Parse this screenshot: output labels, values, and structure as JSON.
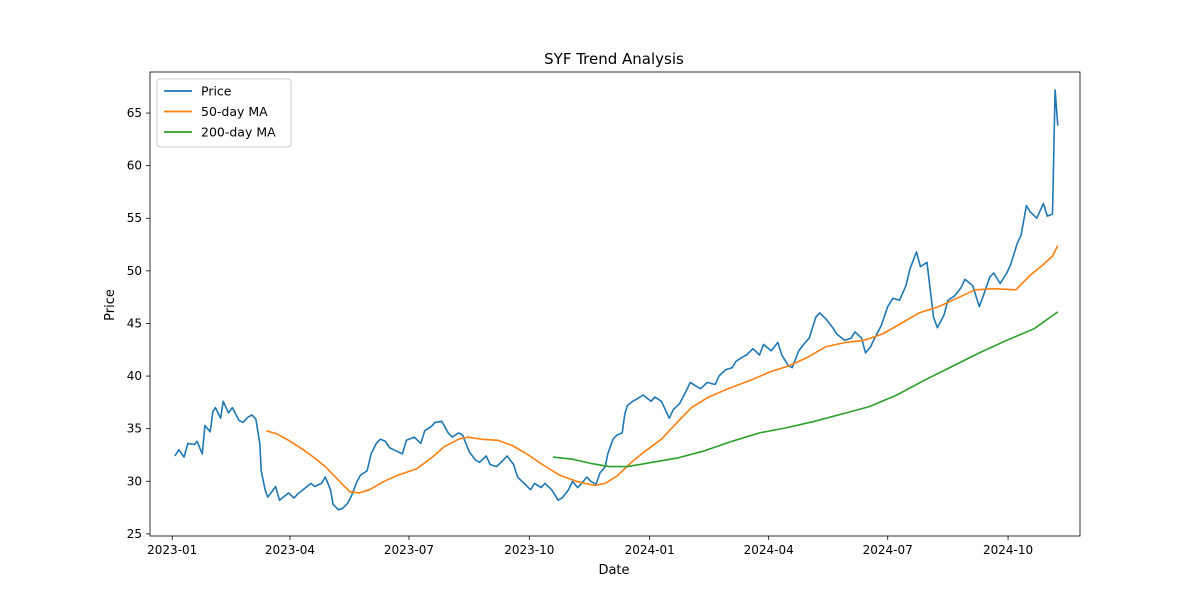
{
  "chart_data": {
    "type": "line",
    "title": "SYF Trend Analysis",
    "xlabel": "Date",
    "ylabel": "Price",
    "xlim": [
      "2022-12-15",
      "2024-11-25"
    ],
    "ylim": [
      24.8,
      68.9
    ],
    "grid": false,
    "legend_position": "top-left",
    "x_ticks": [
      "2023-01",
      "2023-04",
      "2023-07",
      "2023-10",
      "2024-01",
      "2024-04",
      "2024-07",
      "2024-10"
    ],
    "y_ticks": [
      25,
      30,
      35,
      40,
      45,
      50,
      55,
      60,
      65
    ],
    "series": [
      {
        "name": "Price",
        "color": "#1f77b4",
        "points": [
          [
            "2023-01-03",
            32.4
          ],
          [
            "2023-01-06",
            33.0
          ],
          [
            "2023-01-10",
            32.3
          ],
          [
            "2023-01-13",
            33.6
          ],
          [
            "2023-01-18",
            33.5
          ],
          [
            "2023-01-20",
            33.8
          ],
          [
            "2023-01-24",
            32.6
          ],
          [
            "2023-01-26",
            35.3
          ],
          [
            "2023-01-30",
            34.7
          ],
          [
            "2023-02-01",
            36.6
          ],
          [
            "2023-02-03",
            37.0
          ],
          [
            "2023-02-07",
            36.0
          ],
          [
            "2023-02-09",
            37.6
          ],
          [
            "2023-02-13",
            36.5
          ],
          [
            "2023-02-16",
            37.0
          ],
          [
            "2023-02-21",
            35.8
          ],
          [
            "2023-02-24",
            35.6
          ],
          [
            "2023-02-28",
            36.1
          ],
          [
            "2023-03-03",
            36.3
          ],
          [
            "2023-03-06",
            35.9
          ],
          [
            "2023-03-09",
            33.5
          ],
          [
            "2023-03-10",
            31.0
          ],
          [
            "2023-03-13",
            29.2
          ],
          [
            "2023-03-15",
            28.5
          ],
          [
            "2023-03-17",
            28.8
          ],
          [
            "2023-03-21",
            29.5
          ],
          [
            "2023-03-24",
            28.2
          ],
          [
            "2023-03-28",
            28.6
          ],
          [
            "2023-03-31",
            28.9
          ],
          [
            "2023-04-04",
            28.4
          ],
          [
            "2023-04-07",
            28.8
          ],
          [
            "2023-04-12",
            29.3
          ],
          [
            "2023-04-17",
            29.8
          ],
          [
            "2023-04-20",
            29.5
          ],
          [
            "2023-04-25",
            29.8
          ],
          [
            "2023-04-28",
            30.4
          ],
          [
            "2023-05-02",
            29.2
          ],
          [
            "2023-05-04",
            27.8
          ],
          [
            "2023-05-08",
            27.3
          ],
          [
            "2023-05-11",
            27.4
          ],
          [
            "2023-05-15",
            27.9
          ],
          [
            "2023-05-18",
            28.6
          ],
          [
            "2023-05-22",
            29.9
          ],
          [
            "2023-05-25",
            30.6
          ],
          [
            "2023-05-30",
            31.0
          ],
          [
            "2023-06-02",
            32.6
          ],
          [
            "2023-06-06",
            33.6
          ],
          [
            "2023-06-09",
            34.0
          ],
          [
            "2023-06-13",
            33.8
          ],
          [
            "2023-06-16",
            33.2
          ],
          [
            "2023-06-21",
            32.9
          ],
          [
            "2023-06-26",
            32.6
          ],
          [
            "2023-06-29",
            33.9
          ],
          [
            "2023-07-05",
            34.2
          ],
          [
            "2023-07-10",
            33.6
          ],
          [
            "2023-07-13",
            34.8
          ],
          [
            "2023-07-18",
            35.2
          ],
          [
            "2023-07-21",
            35.6
          ],
          [
            "2023-07-26",
            35.7
          ],
          [
            "2023-07-31",
            34.6
          ],
          [
            "2023-08-03",
            34.2
          ],
          [
            "2023-08-08",
            34.6
          ],
          [
            "2023-08-11",
            34.4
          ],
          [
            "2023-08-16",
            32.8
          ],
          [
            "2023-08-21",
            32.0
          ],
          [
            "2023-08-24",
            31.8
          ],
          [
            "2023-08-29",
            32.4
          ],
          [
            "2023-09-01",
            31.6
          ],
          [
            "2023-09-06",
            31.4
          ],
          [
            "2023-09-11",
            32.0
          ],
          [
            "2023-09-14",
            32.4
          ],
          [
            "2023-09-19",
            31.6
          ],
          [
            "2023-09-22",
            30.4
          ],
          [
            "2023-09-27",
            29.8
          ],
          [
            "2023-10-02",
            29.2
          ],
          [
            "2023-10-05",
            29.8
          ],
          [
            "2023-10-10",
            29.4
          ],
          [
            "2023-10-13",
            29.8
          ],
          [
            "2023-10-18",
            29.2
          ],
          [
            "2023-10-23",
            28.2
          ],
          [
            "2023-10-26",
            28.4
          ],
          [
            "2023-10-31",
            29.2
          ],
          [
            "2023-11-03",
            30.0
          ],
          [
            "2023-11-07",
            29.4
          ],
          [
            "2023-11-10",
            29.8
          ],
          [
            "2023-11-14",
            30.4
          ],
          [
            "2023-11-17",
            30.0
          ],
          [
            "2023-11-21",
            29.7
          ],
          [
            "2023-11-24",
            30.8
          ],
          [
            "2023-11-28",
            31.4
          ],
          [
            "2023-11-30",
            32.6
          ],
          [
            "2023-12-04",
            34.0
          ],
          [
            "2023-12-07",
            34.4
          ],
          [
            "2023-12-11",
            34.6
          ],
          [
            "2023-12-13",
            36.4
          ],
          [
            "2023-12-15",
            37.2
          ],
          [
            "2023-12-19",
            37.6
          ],
          [
            "2023-12-22",
            37.8
          ],
          [
            "2023-12-27",
            38.2
          ],
          [
            "2024-01-02",
            37.6
          ],
          [
            "2024-01-05",
            38.0
          ],
          [
            "2024-01-10",
            37.6
          ],
          [
            "2024-01-16",
            36.0
          ],
          [
            "2024-01-19",
            36.8
          ],
          [
            "2024-01-24",
            37.4
          ],
          [
            "2024-01-29",
            38.6
          ],
          [
            "2024-02-01",
            39.4
          ],
          [
            "2024-02-06",
            39.0
          ],
          [
            "2024-02-09",
            38.8
          ],
          [
            "2024-02-14",
            39.4
          ],
          [
            "2024-02-20",
            39.2
          ],
          [
            "2024-02-23",
            40.0
          ],
          [
            "2024-02-28",
            40.6
          ],
          [
            "2024-03-04",
            40.8
          ],
          [
            "2024-03-07",
            41.4
          ],
          [
            "2024-03-12",
            41.8
          ],
          [
            "2024-03-15",
            42.0
          ],
          [
            "2024-03-20",
            42.6
          ],
          [
            "2024-03-25",
            42.0
          ],
          [
            "2024-03-28",
            43.0
          ],
          [
            "2024-04-03",
            42.4
          ],
          [
            "2024-04-08",
            43.2
          ],
          [
            "2024-04-11",
            42.0
          ],
          [
            "2024-04-16",
            41.0
          ],
          [
            "2024-04-19",
            40.8
          ],
          [
            "2024-04-24",
            42.4
          ],
          [
            "2024-04-29",
            43.2
          ],
          [
            "2024-05-02",
            43.6
          ],
          [
            "2024-05-07",
            45.6
          ],
          [
            "2024-05-10",
            46.0
          ],
          [
            "2024-05-15",
            45.4
          ],
          [
            "2024-05-20",
            44.6
          ],
          [
            "2024-05-23",
            44.0
          ],
          [
            "2024-05-29",
            43.4
          ],
          [
            "2024-06-03",
            43.6
          ],
          [
            "2024-06-06",
            44.2
          ],
          [
            "2024-06-11",
            43.6
          ],
          [
            "2024-06-14",
            42.2
          ],
          [
            "2024-06-18",
            42.8
          ],
          [
            "2024-06-21",
            43.6
          ],
          [
            "2024-06-26",
            44.8
          ],
          [
            "2024-07-01",
            46.6
          ],
          [
            "2024-07-05",
            47.4
          ],
          [
            "2024-07-10",
            47.2
          ],
          [
            "2024-07-15",
            48.6
          ],
          [
            "2024-07-18",
            50.2
          ],
          [
            "2024-07-23",
            51.8
          ],
          [
            "2024-07-26",
            50.4
          ],
          [
            "2024-07-31",
            50.8
          ],
          [
            "2024-08-05",
            45.6
          ],
          [
            "2024-08-08",
            44.6
          ],
          [
            "2024-08-13",
            45.8
          ],
          [
            "2024-08-16",
            47.2
          ],
          [
            "2024-08-21",
            47.6
          ],
          [
            "2024-08-26",
            48.4
          ],
          [
            "2024-08-29",
            49.2
          ],
          [
            "2024-09-04",
            48.6
          ],
          [
            "2024-09-09",
            46.6
          ],
          [
            "2024-09-12",
            47.6
          ],
          [
            "2024-09-17",
            49.4
          ],
          [
            "2024-09-20",
            49.8
          ],
          [
            "2024-09-25",
            48.8
          ],
          [
            "2024-09-30",
            49.8
          ],
          [
            "2024-10-03",
            50.6
          ],
          [
            "2024-10-08",
            52.6
          ],
          [
            "2024-10-11",
            53.4
          ],
          [
            "2024-10-15",
            56.2
          ],
          [
            "2024-10-18",
            55.6
          ],
          [
            "2024-10-23",
            55.0
          ],
          [
            "2024-10-28",
            56.4
          ],
          [
            "2024-10-31",
            55.2
          ],
          [
            "2024-11-04",
            55.4
          ],
          [
            "2024-11-06",
            67.2
          ],
          [
            "2024-11-08",
            63.8
          ]
        ]
      },
      {
        "name": "50-day MA",
        "color": "#ff7f0e",
        "points": [
          [
            "2023-03-14",
            34.8
          ],
          [
            "2023-03-22",
            34.5
          ],
          [
            "2023-03-31",
            33.9
          ],
          [
            "2023-04-10",
            33.1
          ],
          [
            "2023-04-19",
            32.3
          ],
          [
            "2023-04-28",
            31.4
          ],
          [
            "2023-05-05",
            30.5
          ],
          [
            "2023-05-12",
            29.6
          ],
          [
            "2023-05-17",
            29.0
          ],
          [
            "2023-05-24",
            28.9
          ],
          [
            "2023-06-01",
            29.2
          ],
          [
            "2023-06-12",
            30.0
          ],
          [
            "2023-06-23",
            30.6
          ],
          [
            "2023-07-07",
            31.2
          ],
          [
            "2023-07-18",
            32.2
          ],
          [
            "2023-07-28",
            33.3
          ],
          [
            "2023-08-08",
            34.0
          ],
          [
            "2023-08-15",
            34.2
          ],
          [
            "2023-08-25",
            34.0
          ],
          [
            "2023-09-07",
            33.9
          ],
          [
            "2023-09-18",
            33.4
          ],
          [
            "2023-09-29",
            32.6
          ],
          [
            "2023-10-11",
            31.6
          ],
          [
            "2023-10-24",
            30.6
          ],
          [
            "2023-11-06",
            30.0
          ],
          [
            "2023-11-20",
            29.6
          ],
          [
            "2023-11-28",
            29.8
          ],
          [
            "2023-12-07",
            30.5
          ],
          [
            "2023-12-18",
            31.8
          ],
          [
            "2023-12-28",
            32.8
          ],
          [
            "2024-01-10",
            34.0
          ],
          [
            "2024-01-22",
            35.6
          ],
          [
            "2024-02-02",
            37.0
          ],
          [
            "2024-02-15",
            38.0
          ],
          [
            "2024-03-01",
            38.8
          ],
          [
            "2024-03-18",
            39.6
          ],
          [
            "2024-04-02",
            40.4
          ],
          [
            "2024-04-17",
            41.0
          ],
          [
            "2024-05-01",
            41.8
          ],
          [
            "2024-05-15",
            42.8
          ],
          [
            "2024-05-30",
            43.2
          ],
          [
            "2024-06-13",
            43.4
          ],
          [
            "2024-06-27",
            44.0
          ],
          [
            "2024-07-11",
            45.0
          ],
          [
            "2024-07-25",
            46.0
          ],
          [
            "2024-08-09",
            46.6
          ],
          [
            "2024-08-23",
            47.4
          ],
          [
            "2024-09-06",
            48.2
          ],
          [
            "2024-09-20",
            48.3
          ],
          [
            "2024-10-07",
            48.2
          ],
          [
            "2024-10-18",
            49.6
          ],
          [
            "2024-10-28",
            50.6
          ],
          [
            "2024-11-04",
            51.4
          ],
          [
            "2024-11-08",
            52.4
          ]
        ]
      },
      {
        "name": "200-day MA",
        "color": "#2ca02c",
        "points": [
          [
            "2023-10-19",
            32.3
          ],
          [
            "2023-11-03",
            32.1
          ],
          [
            "2023-11-17",
            31.7
          ],
          [
            "2023-12-01",
            31.4
          ],
          [
            "2023-12-15",
            31.4
          ],
          [
            "2024-01-03",
            31.8
          ],
          [
            "2024-01-22",
            32.2
          ],
          [
            "2024-02-12",
            32.9
          ],
          [
            "2024-03-04",
            33.8
          ],
          [
            "2024-03-25",
            34.6
          ],
          [
            "2024-04-15",
            35.1
          ],
          [
            "2024-05-06",
            35.7
          ],
          [
            "2024-05-27",
            36.4
          ],
          [
            "2024-06-17",
            37.1
          ],
          [
            "2024-07-08",
            38.2
          ],
          [
            "2024-07-29",
            39.6
          ],
          [
            "2024-08-19",
            40.9
          ],
          [
            "2024-09-09",
            42.2
          ],
          [
            "2024-09-30",
            43.4
          ],
          [
            "2024-10-21",
            44.5
          ],
          [
            "2024-11-08",
            46.1
          ]
        ]
      }
    ]
  }
}
